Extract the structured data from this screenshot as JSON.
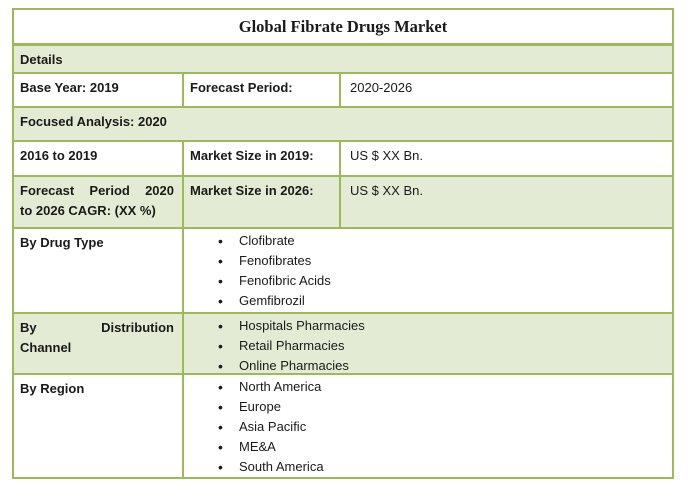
{
  "title": "Global Fibrate Drugs Market",
  "colors": {
    "table_border": "#9CBA58",
    "row_fill": "#E4EBD4",
    "text": "#1A1A1A"
  },
  "rows": {
    "details": "Details",
    "base_year": {
      "col1": "Base Year: 2019",
      "col2": "Forecast Period:",
      "col3": "2020-2026"
    },
    "focused": "Focused Analysis: 2020",
    "historical": {
      "col1": "2016 to 2019",
      "col2": "Market Size in 2019:",
      "col3": "US $ XX Bn."
    },
    "forecast": {
      "col1": "Forecast Period 2020 to 2026 CAGR: (XX %)",
      "col1_line1_words": [
        "Forecast",
        "Period",
        "2020"
      ],
      "col1_line2": "to 2026 CAGR: (XX %)",
      "col2": "Market Size in 2026:",
      "col3": "US $ XX Bn."
    },
    "drug_type": {
      "label": "By Drug Type",
      "items": [
        "Clofibrate",
        "Fenofibrates",
        "Fenofibric Acids",
        "Gemfibrozil"
      ]
    },
    "distribution": {
      "label": "By Distribution Channel",
      "label_line1_words": [
        "By",
        "Distribution"
      ],
      "label_line2": "Channel",
      "items": [
        "Hospitals Pharmacies",
        "Retail Pharmacies",
        "Online Pharmacies"
      ]
    },
    "region": {
      "label": "By Region",
      "items": [
        "North America",
        "Europe",
        "Asia Pacific",
        "ME&A",
        "South America"
      ]
    }
  }
}
